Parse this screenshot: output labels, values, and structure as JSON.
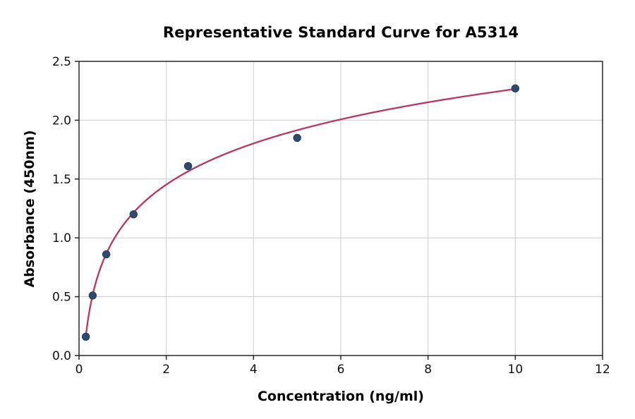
{
  "chart_data": {
    "type": "scatter",
    "title": "Representative Standard Curve for A5314",
    "xlabel": "Concentration (ng/ml)",
    "ylabel": "Absorbance (450nm)",
    "xlim": [
      0,
      12
    ],
    "ylim": [
      0,
      2.5
    ],
    "xticks": [
      0,
      2,
      4,
      6,
      8,
      10,
      12
    ],
    "xtick_labels": [
      "0",
      "2",
      "4",
      "6",
      "8",
      "10",
      "12"
    ],
    "yticks": [
      0,
      0.5,
      1.0,
      1.5,
      2.0,
      2.5
    ],
    "ytick_labels": [
      "0.0",
      "0.5",
      "1.0",
      "1.5",
      "2.0",
      "2.5"
    ],
    "grid": true,
    "legend": "none",
    "points": [
      {
        "x": 0.156,
        "y": 0.16
      },
      {
        "x": 0.313,
        "y": 0.51
      },
      {
        "x": 0.625,
        "y": 0.86
      },
      {
        "x": 1.25,
        "y": 1.2
      },
      {
        "x": 2.5,
        "y": 1.61
      },
      {
        "x": 5.0,
        "y": 1.85
      },
      {
        "x": 10.0,
        "y": 2.27
      }
    ],
    "fit_curve": {
      "type": "logarithmic",
      "equation": "y = a + b*ln(x)",
      "a": 1.1026,
      "b": 0.5048,
      "x_start": 0.156,
      "x_end": 10.0
    },
    "colors": {
      "marker": "#2e4a6e",
      "marker_edge": "#243f5e",
      "line": "#bb3560",
      "grid": "#cccccc",
      "spine": "#1a1a1a",
      "tick_label": "#111111",
      "background": "#ffffff"
    }
  }
}
